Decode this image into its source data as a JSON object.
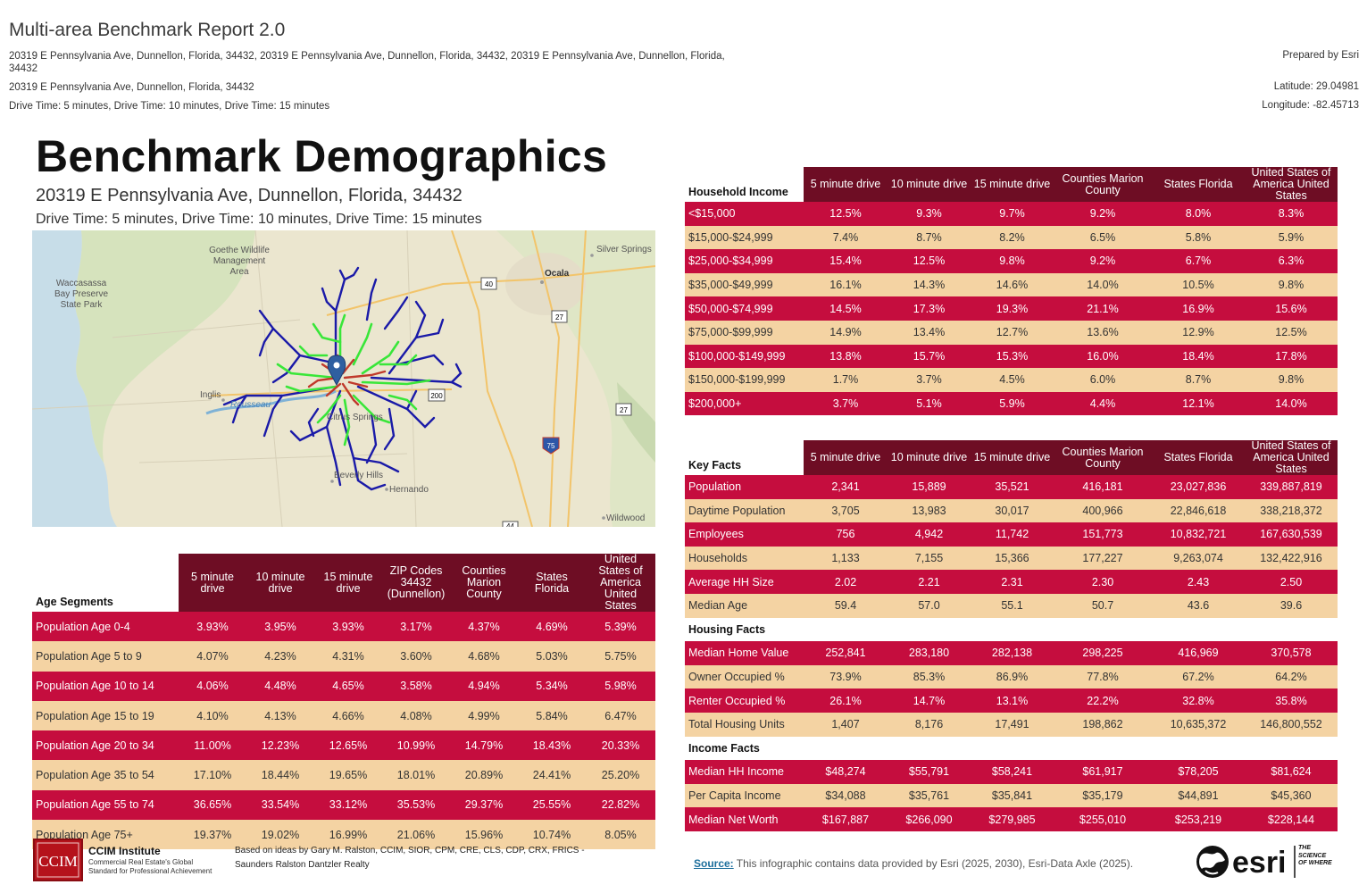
{
  "header": {
    "report_title": "Multi-area Benchmark Report 2.0",
    "addresses_line1": "20319 E Pennsylvania Ave, Dunnellon, Florida, 34432, 20319 E Pennsylvania Ave, Dunnellon, Florida, 34432, 20319 E Pennsylvania Ave, Dunnellon, Florida,",
    "addresses_line2": "34432",
    "address": "20319 E Pennsylvania Ave, Dunnellon, Florida, 34432",
    "drive_times": "Drive Time: 5 minutes, Drive Time: 10 minutes, Drive Time: 15 minutes",
    "prepared_by": "Prepared by Esri",
    "latitude": "Latitude: 29.04981",
    "longitude": "Longitude: -82.45713"
  },
  "main": {
    "title": "Benchmark Demographics",
    "address": "20319 E Pennsylvania Ave, Dunnellon, Florida, 34432",
    "drive_times": "Drive Time: 5 minutes, Drive Time: 10 minutes, Drive Time: 15 minutes"
  },
  "map": {
    "labels": {
      "goethe": "Goethe Wildlife\nManagement\nArea",
      "waccasassa": "Waccasassa\nBay Preserve\nState Park",
      "silver_springs": "Silver Springs",
      "ocala": "Ocala",
      "inglis": "Inglis",
      "rousseau": "Rousseau",
      "citrus_springs": "Citrus Springs",
      "beverly_hills": "Beverly Hills",
      "hernando": "Hernando",
      "wildwood": "Wildwood"
    },
    "shields": {
      "r40": "40",
      "r27a": "27",
      "r200": "200",
      "r27b": "27",
      "i75": "75",
      "r44": "44"
    },
    "colors": {
      "five_min": "#c0392b",
      "ten_min": "#39e639",
      "fifteen_min": "#1a1aa8",
      "pin": "#2f5fa0"
    }
  },
  "age_segments": {
    "title": "Age Segments",
    "columns": [
      "5 minute drive",
      "10 minute drive",
      "15 minute drive",
      "ZIP Codes 34432 (Dunnellon)",
      "Counties Marion County",
      "States Florida",
      "United States of America United States"
    ],
    "rows": [
      {
        "label": "Population Age 0-4",
        "values": [
          "3.93%",
          "3.95%",
          "3.93%",
          "3.17%",
          "4.37%",
          "4.69%",
          "5.39%"
        ]
      },
      {
        "label": "Population Age 5 to 9",
        "values": [
          "4.07%",
          "4.23%",
          "4.31%",
          "3.60%",
          "4.68%",
          "5.03%",
          "5.75%"
        ]
      },
      {
        "label": "Population Age 10 to 14",
        "values": [
          "4.06%",
          "4.48%",
          "4.65%",
          "3.58%",
          "4.94%",
          "5.34%",
          "5.98%"
        ]
      },
      {
        "label": "Population Age 15 to 19",
        "values": [
          "4.10%",
          "4.13%",
          "4.66%",
          "4.08%",
          "4.99%",
          "5.84%",
          "6.47%"
        ]
      },
      {
        "label": "Population Age 20 to 34",
        "values": [
          "11.00%",
          "12.23%",
          "12.65%",
          "10.99%",
          "14.79%",
          "18.43%",
          "20.33%"
        ]
      },
      {
        "label": "Population Age 35 to 54",
        "values": [
          "17.10%",
          "18.44%",
          "19.65%",
          "18.01%",
          "20.89%",
          "24.41%",
          "25.20%"
        ]
      },
      {
        "label": "Population Age 55 to 74",
        "values": [
          "36.65%",
          "33.54%",
          "33.12%",
          "35.53%",
          "29.37%",
          "25.55%",
          "22.82%"
        ]
      },
      {
        "label": "Population Age 75+",
        "values": [
          "19.37%",
          "19.02%",
          "16.99%",
          "21.06%",
          "15.96%",
          "10.74%",
          "8.05%"
        ]
      }
    ]
  },
  "household_income": {
    "title": "Household Income",
    "columns": [
      "5 minute drive",
      "10 minute drive",
      "15 minute drive",
      "Counties Marion County",
      "States Florida",
      "United States of America United States"
    ],
    "rows": [
      {
        "label": "<$15,000",
        "values": [
          "12.5%",
          "9.3%",
          "9.7%",
          "9.2%",
          "8.0%",
          "8.3%"
        ]
      },
      {
        "label": "$15,000-$24,999",
        "values": [
          "7.4%",
          "8.7%",
          "8.2%",
          "6.5%",
          "5.8%",
          "5.9%"
        ]
      },
      {
        "label": "$25,000-$34,999",
        "values": [
          "15.4%",
          "12.5%",
          "9.8%",
          "9.2%",
          "6.7%",
          "6.3%"
        ]
      },
      {
        "label": "$35,000-$49,999",
        "values": [
          "16.1%",
          "14.3%",
          "14.6%",
          "14.0%",
          "10.5%",
          "9.8%"
        ]
      },
      {
        "label": "$50,000-$74,999",
        "values": [
          "14.5%",
          "17.3%",
          "19.3%",
          "21.1%",
          "16.9%",
          "15.6%"
        ]
      },
      {
        "label": "$75,000-$99,999",
        "values": [
          "14.9%",
          "13.4%",
          "12.7%",
          "13.6%",
          "12.9%",
          "12.5%"
        ]
      },
      {
        "label": "$100,000-$149,999",
        "values": [
          "13.8%",
          "15.7%",
          "15.3%",
          "16.0%",
          "18.4%",
          "17.8%"
        ]
      },
      {
        "label": "$150,000-$199,999",
        "values": [
          "1.7%",
          "3.7%",
          "4.5%",
          "6.0%",
          "8.7%",
          "9.8%"
        ]
      },
      {
        "label": "$200,000+",
        "values": [
          "3.7%",
          "5.1%",
          "5.9%",
          "4.4%",
          "12.1%",
          "14.0%"
        ]
      }
    ]
  },
  "key_facts": {
    "title": "Key Facts",
    "columns": [
      "5 minute drive",
      "10 minute drive",
      "15 minute drive",
      "Counties Marion County",
      "States Florida",
      "United States of America United States"
    ],
    "rows": [
      {
        "label": "Population",
        "values": [
          "2,341",
          "15,889",
          "35,521",
          "416,181",
          "23,027,836",
          "339,887,819"
        ]
      },
      {
        "label": "Daytime Population",
        "values": [
          "3,705",
          "13,983",
          "30,017",
          "400,966",
          "22,846,618",
          "338,218,372"
        ]
      },
      {
        "label": "Employees",
        "values": [
          "756",
          "4,942",
          "11,742",
          "151,773",
          "10,832,721",
          "167,630,539"
        ]
      },
      {
        "label": "Households",
        "values": [
          "1,133",
          "7,155",
          "15,366",
          "177,227",
          "9,263,074",
          "132,422,916"
        ]
      },
      {
        "label": "Average HH Size",
        "values": [
          "2.02",
          "2.21",
          "2.31",
          "2.30",
          "2.43",
          "2.50"
        ]
      },
      {
        "label": "Median Age",
        "values": [
          "59.4",
          "57.0",
          "55.1",
          "50.7",
          "43.6",
          "39.6"
        ]
      }
    ],
    "housing_title": "Housing Facts",
    "housing_rows": [
      {
        "label": "Median Home Value",
        "values": [
          "252,841",
          "283,180",
          "282,138",
          "298,225",
          "416,969",
          "370,578"
        ]
      },
      {
        "label": "Owner Occupied %",
        "values": [
          "73.9%",
          "85.3%",
          "86.9%",
          "77.8%",
          "67.2%",
          "64.2%"
        ]
      },
      {
        "label": "Renter Occupied %",
        "values": [
          "26.1%",
          "14.7%",
          "13.1%",
          "22.2%",
          "32.8%",
          "35.8%"
        ]
      },
      {
        "label": "Total Housing Units",
        "values": [
          "1,407",
          "8,176",
          "17,491",
          "198,862",
          "10,635,372",
          "146,800,552"
        ]
      }
    ],
    "income_title": "Income Facts",
    "income_rows": [
      {
        "label": "Median HH Income",
        "values": [
          "$48,274",
          "$55,791",
          "$58,241",
          "$61,917",
          "$78,205",
          "$81,624"
        ]
      },
      {
        "label": "Per Capita Income",
        "values": [
          "$34,088",
          "$35,761",
          "$35,841",
          "$35,179",
          "$44,891",
          "$45,360"
        ]
      },
      {
        "label": "Median Net Worth",
        "values": [
          "$167,887",
          "$266,090",
          "$279,985",
          "$255,010",
          "$253,219",
          "$228,144"
        ]
      }
    ]
  },
  "footer": {
    "ccim_logo_text": "CCIM",
    "ccim_name": "CCIM Institute",
    "ccim_tagline": "Commercial Real Estate's Global Standard for Professional Achievement",
    "based_on": "Based on ideas by Gary M. Ralston, CCIM, SIOR, CPM, CRE, CLS, CDP, CRX, FRICS - Saunders Ralston Dantzler Realty",
    "source_label": "Source:",
    "source_text": " This infographic contains data provided by Esri (2025, 2030), Esri-Data Axle (2025).",
    "esri_logo_text": "esri",
    "esri_tagline": "THE SCIENCE OF WHERE"
  }
}
